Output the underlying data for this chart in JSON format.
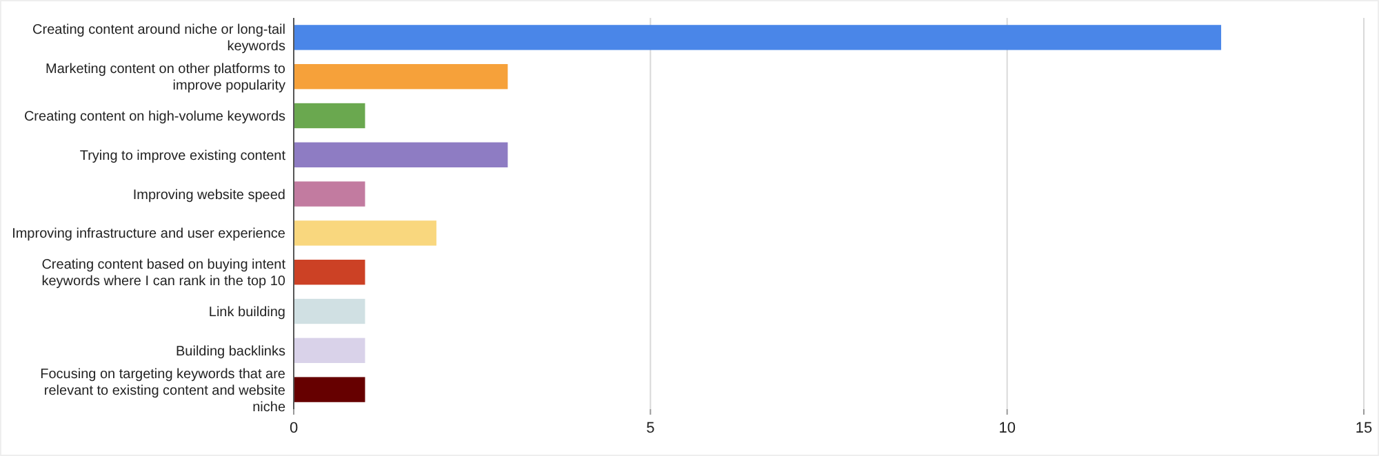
{
  "chart_data": {
    "type": "bar",
    "orientation": "horizontal",
    "categories": [
      "Creating content around niche or long-tail keywords",
      "Marketing content on other platforms to improve popularity",
      "Creating content on high-volume keywords",
      "Trying to improve existing content",
      "Improving website speed",
      "Improving infrastructure and user experience",
      "Creating content based on buying intent keywords where I can rank in the top 10",
      "Link building",
      "Building backlinks",
      "Focusing on targeting keywords that are relevant to existing content and website niche"
    ],
    "values": [
      13,
      3,
      1,
      3,
      1,
      2,
      1,
      1,
      1,
      1
    ],
    "colors": [
      "#4a86e8",
      "#f6a13a",
      "#6aa84f",
      "#8e7cc3",
      "#c27ba0",
      "#f9d77e",
      "#cc4125",
      "#d0e0e3",
      "#d9d2e9",
      "#660000"
    ],
    "xlim": [
      0,
      15
    ],
    "xticks": [
      0,
      5,
      10,
      15
    ],
    "grid": "x"
  }
}
